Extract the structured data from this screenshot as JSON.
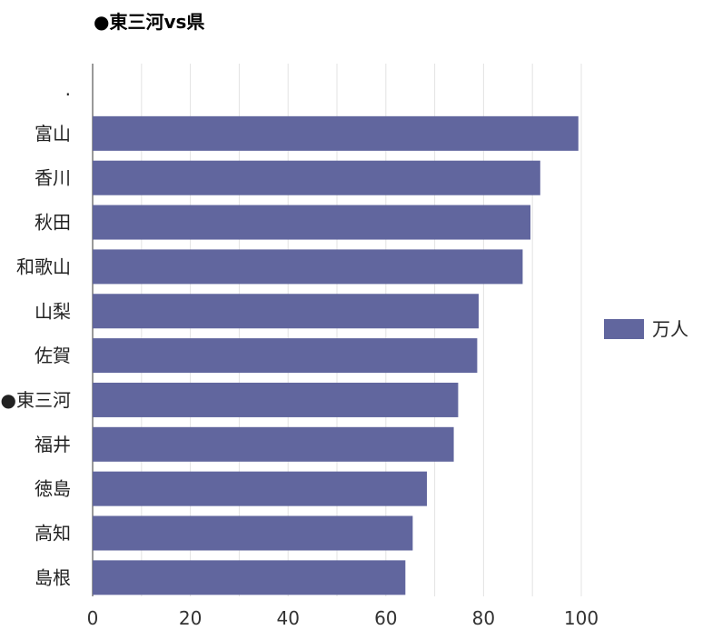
{
  "chart_data": {
    "type": "bar",
    "orientation": "horizontal",
    "title": "●東三河vs県",
    "categories": [
      ".",
      "富山",
      "香川",
      "秋田",
      "和歌山",
      "山梨",
      "佐賀",
      "●東三河",
      "福井",
      "徳島",
      "高知",
      "島根"
    ],
    "series": [
      {
        "name": "万人",
        "color": "#61669e",
        "values": [
          null,
          99.4,
          91.6,
          89.6,
          88.0,
          79.0,
          78.7,
          74.8,
          73.9,
          68.4,
          65.5,
          64.0
        ]
      }
    ],
    "xlim": [
      0,
      100
    ],
    "xticks": [
      "0",
      "20",
      "40",
      "60",
      "80",
      "100"
    ],
    "grid": true,
    "legend_position": "right"
  }
}
